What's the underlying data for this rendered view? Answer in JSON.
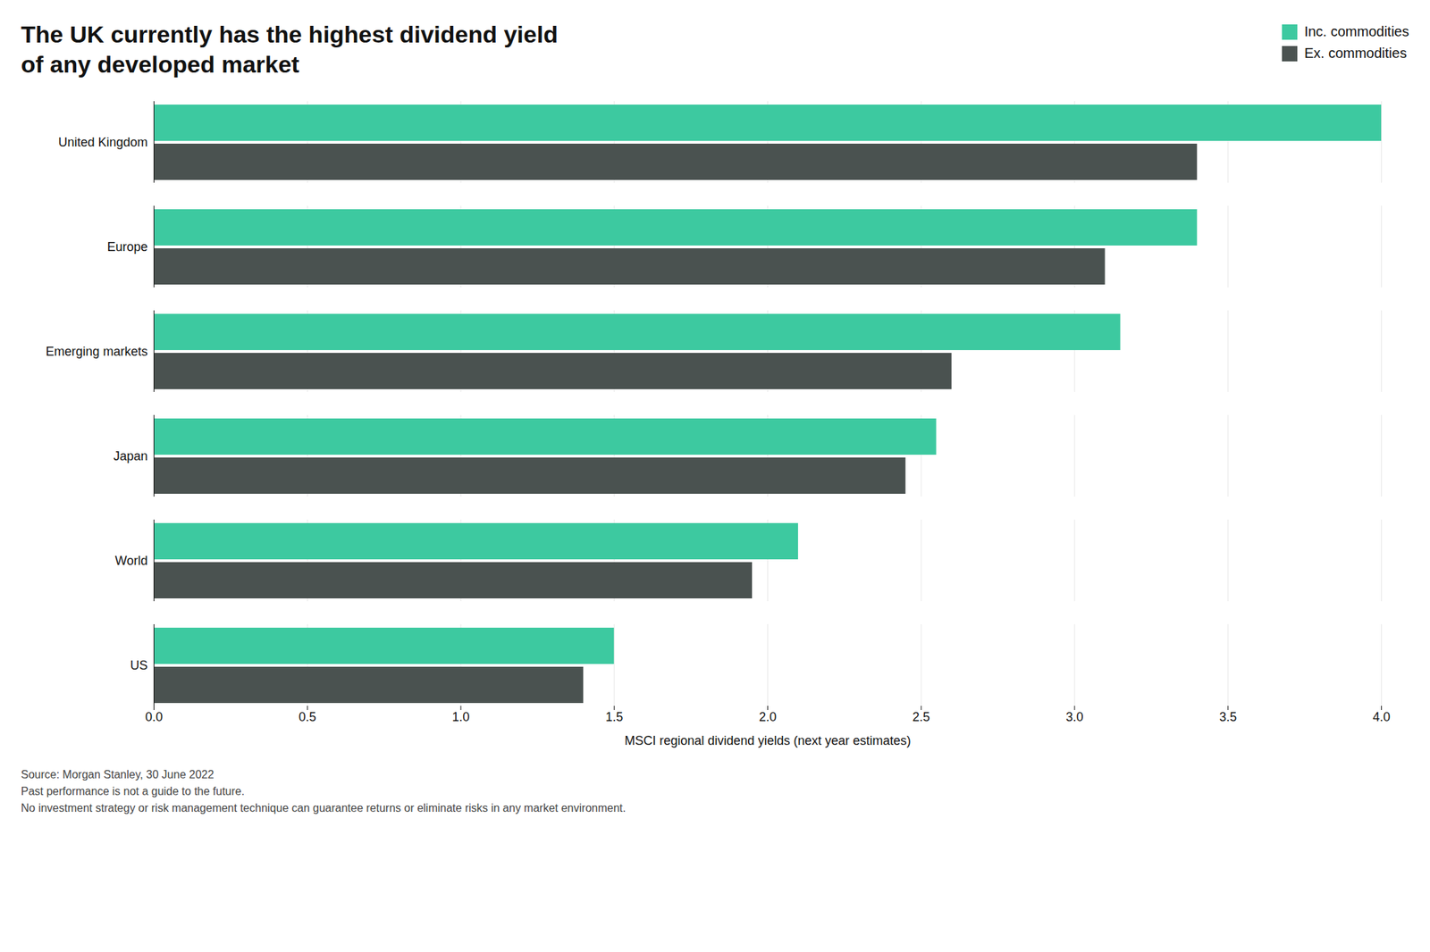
{
  "chart_data": {
    "type": "bar",
    "orientation": "horizontal",
    "title": "The UK currently has the highest dividend yield\nof any developed market",
    "categories": [
      "United Kingdom",
      "Europe",
      "Emerging markets",
      "Japan",
      "World",
      "US"
    ],
    "series": [
      {
        "name": "Inc. commodities",
        "color": "#3DC9A0",
        "values": [
          4.0,
          3.4,
          3.15,
          2.55,
          2.1,
          1.5
        ]
      },
      {
        "name": "Ex. commodities",
        "color": "#4A5250",
        "values": [
          3.4,
          3.1,
          2.6,
          2.45,
          1.95,
          1.4
        ]
      }
    ],
    "xlabel": "MSCI regional dividend yields (next year estimates)",
    "xlim": [
      0,
      4.0
    ],
    "xticks": [
      {
        "value": 0.0,
        "label": "0.0"
      },
      0.5,
      {
        "value": 1.0,
        "label": "1.0"
      },
      1.5,
      {
        "value": 2.0,
        "label": "2.0"
      },
      2.5,
      {
        "value": 3.0,
        "label": "3.0"
      },
      3.5,
      {
        "value": 4.0,
        "label": "4.0"
      }
    ],
    "grid": true,
    "legend": "upper right",
    "annotations": [
      "Source: Morgan Stanley, 30 June 2022\nPast performance is not a guide to the future.\nNo investment strategy or risk management technique can guarantee returns or eliminate risks in any market environment."
    ]
  }
}
